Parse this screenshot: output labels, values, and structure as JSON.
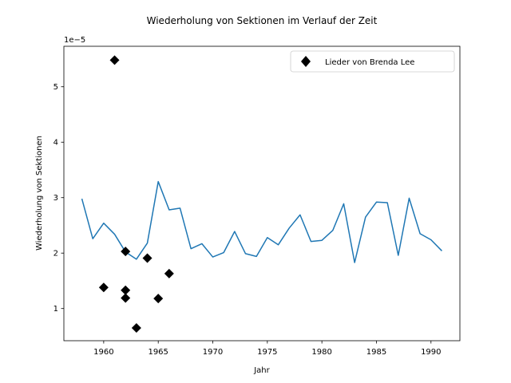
{
  "chart_data": {
    "type": "line",
    "title": "Wiederholung von Sektionen im Verlauf der Zeit",
    "xlabel": "Jahr",
    "ylabel": "Wiederholung von Sektionen",
    "offset_label": "1e−5",
    "xlim": [
      1956.35,
      1992.65
    ],
    "ylim": [
      0.42,
      5.73
    ],
    "x_ticks": [
      1960,
      1965,
      1970,
      1975,
      1980,
      1985,
      1990
    ],
    "y_ticks": [
      1,
      2,
      3,
      4,
      5
    ],
    "grid": false,
    "legend_position": "top-right",
    "colors": {
      "line": "#1f77b4",
      "markers": "#000000"
    },
    "series": [
      {
        "type": "line",
        "x": [
          1958,
          1959,
          1960,
          1961,
          1962,
          1963,
          1964,
          1965,
          1966,
          1967,
          1968,
          1969,
          1970,
          1971,
          1972,
          1973,
          1974,
          1975,
          1976,
          1977,
          1978,
          1979,
          1980,
          1981,
          1982,
          1983,
          1984,
          1985,
          1986,
          1987,
          1988,
          1989,
          1990,
          1991
        ],
        "values": [
          2.98,
          2.26,
          2.54,
          2.34,
          2.02,
          1.89,
          2.18,
          3.29,
          2.78,
          2.81,
          2.08,
          2.17,
          1.93,
          2.01,
          2.39,
          1.99,
          1.94,
          2.28,
          2.15,
          2.45,
          2.69,
          2.21,
          2.23,
          2.41,
          2.89,
          1.83,
          2.65,
          2.92,
          2.91,
          1.96,
          2.99,
          2.35,
          2.24,
          2.04
        ]
      },
      {
        "name": "Lieder von Brenda Lee",
        "type": "scatter",
        "marker": "diamond",
        "x": [
          1960,
          1961,
          1962,
          1962,
          1962,
          1963,
          1964,
          1965,
          1966
        ],
        "values": [
          1.38,
          5.48,
          2.03,
          1.33,
          1.19,
          0.65,
          1.91,
          1.18,
          1.63
        ]
      }
    ]
  }
}
